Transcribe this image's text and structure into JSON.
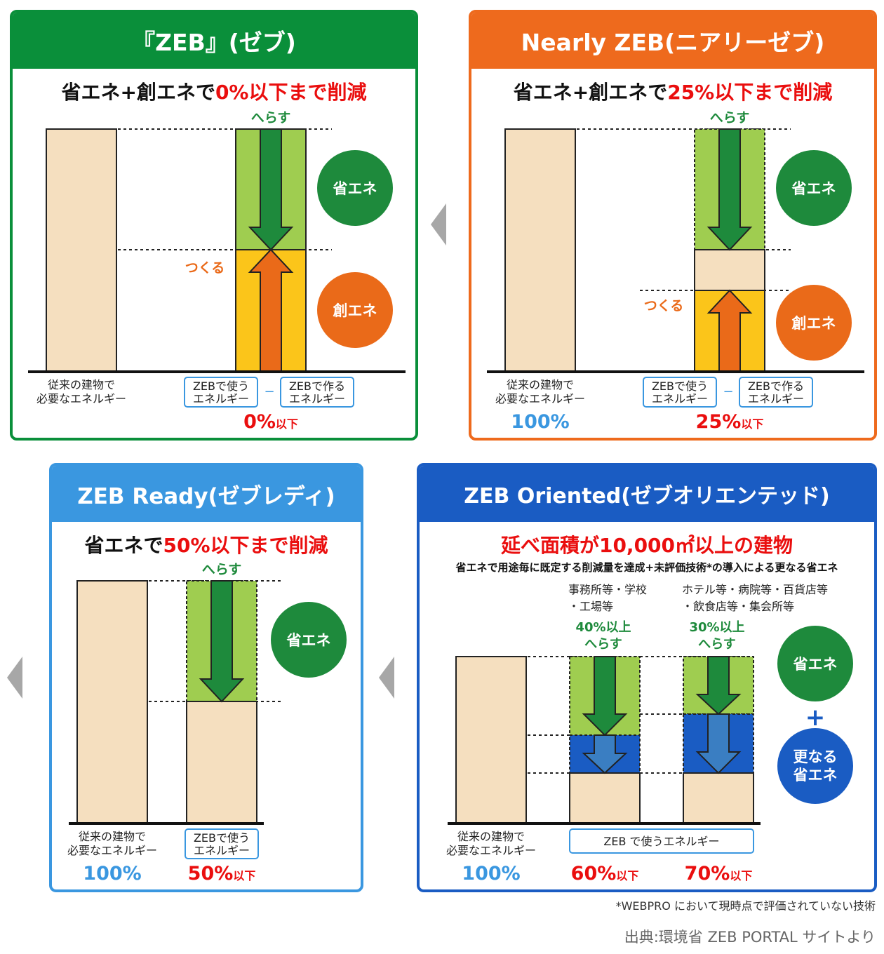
{
  "panels": {
    "zeb": {
      "header": "『ZEB』(ゼブ)",
      "subtitle_prefix": "省エネ+創エネで",
      "subtitle_highlight": "0%以下まで削減",
      "reduce_label": "へらす",
      "make_label": "つくる",
      "circle_save": "省エネ",
      "circle_create": "創エネ",
      "baseline_label": [
        "従来の建物で",
        "必要なエネルギー"
      ],
      "use_box": [
        "ZEBで使う",
        "エネルギー"
      ],
      "minus": "−",
      "make_box": [
        "ZEBで作る",
        "エネルギー"
      ],
      "pct": "0%",
      "pct_suffix": "以下"
    },
    "nearly": {
      "header": "Nearly ZEB(ニアリーゼブ)",
      "subtitle_prefix": "省エネ+創エネで",
      "subtitle_highlight": "25%以下まで削減",
      "reduce_label": "へらす",
      "make_label": "つくる",
      "circle_save": "省エネ",
      "circle_create": "創エネ",
      "baseline_label": [
        "従来の建物で",
        "必要なエネルギー"
      ],
      "baseline_pct": "100%",
      "use_box": [
        "ZEBで使う",
        "エネルギー"
      ],
      "minus": "−",
      "make_box": [
        "ZEBで作る",
        "エネルギー"
      ],
      "pct": "25%",
      "pct_suffix": "以下"
    },
    "ready": {
      "header": "ZEB Ready(ゼブレディ)",
      "subtitle_prefix": "省エネで",
      "subtitle_highlight": "50%以下まで削減",
      "reduce_label": "へらす",
      "circle_save": "省エネ",
      "baseline_label": [
        "従来の建物で",
        "必要なエネルギー"
      ],
      "baseline_pct": "100%",
      "use_box": [
        "ZEBで使う",
        "エネルギー"
      ],
      "pct": "50%",
      "pct_suffix": "以下"
    },
    "oriented": {
      "header": "ZEB Oriented(ゼブオリエンテッド)",
      "subtitle_highlight": "延べ面積が10,000㎡以上の建物",
      "description": "省エネで用途毎に既定する削減量を達成+未評価技術*の導入による更なる省エネ",
      "group1_label": [
        "事務所等・学校",
        "・工場等"
      ],
      "group1_reduce": [
        "40%以上",
        "へらす"
      ],
      "group2_label": [
        "ホテル等・病院等・百貨店等",
        "・飲食店等・集会所等"
      ],
      "group2_reduce": [
        "30%以上",
        "へらす"
      ],
      "circle_save": "省エネ",
      "plus": "+",
      "circle_more": [
        "更なる",
        "省エネ"
      ],
      "baseline_label": [
        "従来の建物で",
        "必要なエネルギー"
      ],
      "baseline_pct": "100%",
      "use_box": "ZEB で使うエネルギー",
      "pct1": "60%",
      "pct2": "70%",
      "pct_suffix": "以下"
    }
  },
  "footnote": "*WEBPRO において現時点で評価されていない技術",
  "source": "出典:環境省 ZEB PORTAL サイトより",
  "colors": {
    "zeb": "#0a8f3a",
    "nearly": "#ee6a1d",
    "ready": "#3a97e0",
    "oriented": "#1a5cc3",
    "beige": "#f5dfbf",
    "light_green": "#9fcd50",
    "dark_green": "#1e8a3c",
    "yellow": "#fbc51a",
    "orange": "#ea6a19",
    "blue_fill": "#1a5cc3",
    "blue_arrow": "#3a7ec2",
    "red": "#ea0e0e",
    "pct_blue": "#3a97e0"
  }
}
